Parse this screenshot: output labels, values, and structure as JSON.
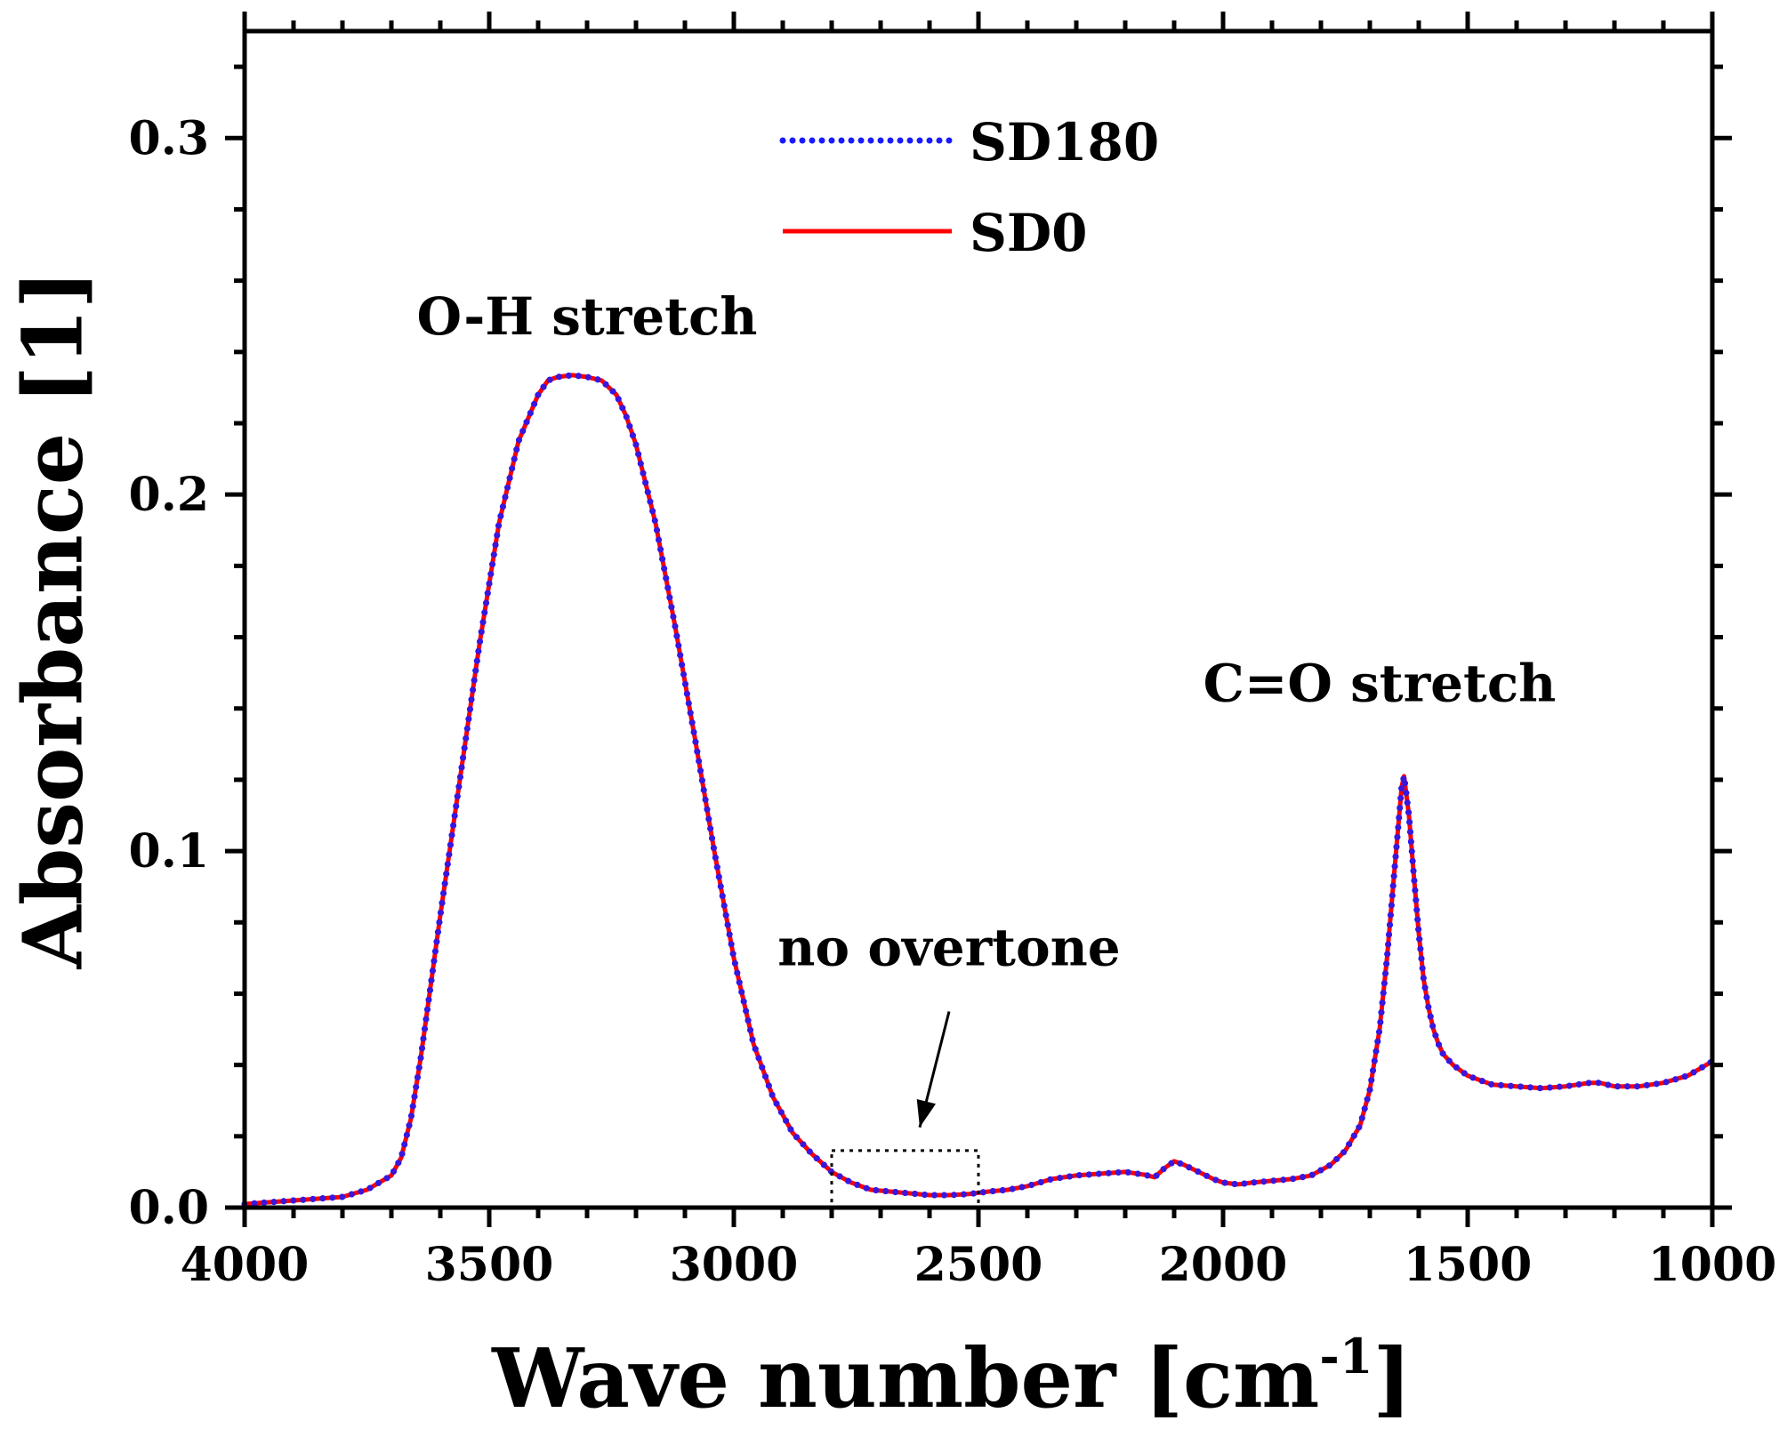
{
  "colors": {
    "SD180": "#1a1aff",
    "SD0": "#ff0000",
    "axis": "#000000"
  },
  "chart_data": {
    "type": "line",
    "xlabel": "Wave number [cm",
    "xlabel_sup": "-1",
    "xlabel_close": "]",
    "ylabel": "Absorbance [1]",
    "xlim": [
      4000,
      1000
    ],
    "ylim": [
      0,
      0.33
    ],
    "x_reversed": true,
    "x_ticks": [
      4000,
      3500,
      3000,
      2500,
      2000,
      1500,
      1000
    ],
    "x_tick_labels": [
      "4000",
      "3500",
      "3000",
      "2500",
      "2000",
      "1500",
      "1000"
    ],
    "y_ticks": [
      0.0,
      0.1,
      0.2,
      0.3
    ],
    "y_tick_labels": [
      "0.0",
      "0.1",
      "0.2",
      "0.3"
    ],
    "grid": false,
    "legend_position": "top-center",
    "legend": [
      {
        "name": "SD180",
        "style": "dotted",
        "color": "#1a1aff"
      },
      {
        "name": "SD0",
        "style": "solid",
        "color": "#ff0000"
      }
    ],
    "annotations": [
      {
        "text": "O-H stretch",
        "x": 3300,
        "y": 0.245
      },
      {
        "text": "C=O stretch",
        "x": 1680,
        "y": 0.142
      },
      {
        "text": "no overtone",
        "x": 2560,
        "y": 0.068
      }
    ],
    "highlight_box": {
      "x_range": [
        2800,
        2500
      ],
      "y_range": [
        0.0,
        0.016
      ]
    },
    "series": [
      {
        "name": "SD180",
        "style": "dotted",
        "x": [
          4000,
          3950,
          3900,
          3850,
          3800,
          3750,
          3700,
          3680,
          3660,
          3640,
          3600,
          3560,
          3520,
          3480,
          3440,
          3400,
          3380,
          3360,
          3330,
          3300,
          3270,
          3240,
          3220,
          3200,
          3160,
          3120,
          3080,
          3040,
          3000,
          2960,
          2920,
          2880,
          2840,
          2800,
          2760,
          2720,
          2680,
          2640,
          2600,
          2560,
          2520,
          2480,
          2440,
          2400,
          2350,
          2300,
          2250,
          2200,
          2160,
          2140,
          2120,
          2100,
          2080,
          2050,
          2020,
          2000,
          1970,
          1940,
          1900,
          1860,
          1820,
          1780,
          1750,
          1720,
          1700,
          1680,
          1665,
          1650,
          1640,
          1635,
          1630,
          1620,
          1610,
          1600,
          1590,
          1580,
          1570,
          1560,
          1550,
          1530,
          1500,
          1450,
          1400,
          1350,
          1300,
          1250,
          1240,
          1230,
          1200,
          1150,
          1100,
          1050,
          1000
        ],
        "y": [
          0.001,
          0.0015,
          0.002,
          0.0025,
          0.003,
          0.005,
          0.009,
          0.014,
          0.025,
          0.042,
          0.082,
          0.12,
          0.158,
          0.192,
          0.215,
          0.228,
          0.232,
          0.233,
          0.2335,
          0.233,
          0.232,
          0.228,
          0.222,
          0.214,
          0.192,
          0.163,
          0.132,
          0.1,
          0.07,
          0.046,
          0.031,
          0.021,
          0.015,
          0.01,
          0.007,
          0.005,
          0.0045,
          0.004,
          0.0035,
          0.0035,
          0.0038,
          0.0045,
          0.005,
          0.006,
          0.008,
          0.009,
          0.0095,
          0.01,
          0.0092,
          0.0085,
          0.011,
          0.013,
          0.012,
          0.01,
          0.008,
          0.007,
          0.0065,
          0.007,
          0.0075,
          0.008,
          0.009,
          0.012,
          0.016,
          0.023,
          0.033,
          0.05,
          0.07,
          0.094,
          0.11,
          0.118,
          0.121,
          0.11,
          0.093,
          0.077,
          0.064,
          0.056,
          0.05,
          0.046,
          0.043,
          0.04,
          0.037,
          0.0345,
          0.034,
          0.0335,
          0.034,
          0.035,
          0.035,
          0.035,
          0.034,
          0.034,
          0.035,
          0.037,
          0.041
        ]
      },
      {
        "name": "SD0",
        "style": "solid",
        "x": [
          4000,
          3950,
          3900,
          3850,
          3800,
          3750,
          3700,
          3680,
          3660,
          3640,
          3600,
          3560,
          3520,
          3480,
          3440,
          3400,
          3380,
          3360,
          3330,
          3300,
          3270,
          3240,
          3220,
          3200,
          3160,
          3120,
          3080,
          3040,
          3000,
          2960,
          2920,
          2880,
          2840,
          2800,
          2760,
          2720,
          2680,
          2640,
          2600,
          2560,
          2520,
          2480,
          2440,
          2400,
          2350,
          2300,
          2250,
          2200,
          2160,
          2140,
          2120,
          2100,
          2080,
          2050,
          2020,
          2000,
          1970,
          1940,
          1900,
          1860,
          1820,
          1780,
          1750,
          1720,
          1700,
          1680,
          1665,
          1650,
          1640,
          1635,
          1630,
          1620,
          1610,
          1600,
          1590,
          1580,
          1570,
          1560,
          1550,
          1530,
          1500,
          1450,
          1400,
          1350,
          1300,
          1250,
          1240,
          1230,
          1200,
          1150,
          1100,
          1050,
          1000
        ],
        "y": [
          0.001,
          0.0015,
          0.002,
          0.0025,
          0.003,
          0.005,
          0.009,
          0.014,
          0.025,
          0.042,
          0.082,
          0.12,
          0.158,
          0.192,
          0.215,
          0.228,
          0.232,
          0.233,
          0.2335,
          0.233,
          0.232,
          0.228,
          0.222,
          0.214,
          0.192,
          0.163,
          0.132,
          0.1,
          0.07,
          0.046,
          0.031,
          0.021,
          0.015,
          0.01,
          0.007,
          0.005,
          0.0045,
          0.004,
          0.0035,
          0.0035,
          0.0038,
          0.0045,
          0.005,
          0.006,
          0.008,
          0.009,
          0.0095,
          0.01,
          0.0092,
          0.0085,
          0.011,
          0.013,
          0.012,
          0.01,
          0.008,
          0.007,
          0.0065,
          0.007,
          0.0075,
          0.008,
          0.009,
          0.012,
          0.016,
          0.023,
          0.033,
          0.05,
          0.07,
          0.094,
          0.11,
          0.118,
          0.121,
          0.11,
          0.093,
          0.077,
          0.064,
          0.056,
          0.05,
          0.046,
          0.043,
          0.04,
          0.037,
          0.0345,
          0.034,
          0.0335,
          0.034,
          0.035,
          0.035,
          0.035,
          0.034,
          0.034,
          0.035,
          0.037,
          0.041
        ]
      }
    ]
  }
}
